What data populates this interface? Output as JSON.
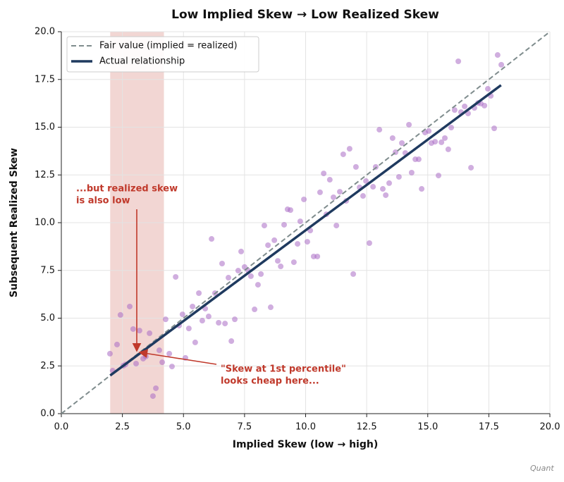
{
  "chart_data": {
    "type": "scatter",
    "title": "Low Implied Skew → Low Realized Skew",
    "x_label": "Implied Skew (low → high)",
    "y_label": "Subsequent Realized Skew",
    "xlim": [
      0,
      20
    ],
    "ylim": [
      0,
      20
    ],
    "xticks": [
      {
        "value": 0,
        "label": "0.0"
      },
      2.5,
      {
        "value": 5,
        "label": "5.0"
      },
      7.5,
      {
        "value": 10,
        "label": "10.0"
      },
      12.5,
      {
        "value": 15,
        "label": "15.0"
      },
      17.5,
      {
        "value": 20,
        "label": "20.0"
      }
    ],
    "yticks": [
      {
        "value": 0,
        "label": "0.0"
      },
      2.5,
      {
        "value": 5,
        "label": "5.0"
      },
      7.5,
      {
        "value": 10,
        "label": "10.0"
      },
      12.5,
      {
        "value": 15,
        "label": "15.0"
      },
      17.5,
      {
        "value": 20,
        "label": "20.0"
      }
    ],
    "grid": true,
    "legend": "upper left",
    "shaded_x": [
      2,
      4.2
    ],
    "shade_color": "#e8b4ae",
    "points": {
      "color": "#a96cc4",
      "x": [
        1.99,
        2.1,
        2.28,
        2.42,
        2.54,
        2.63,
        2.8,
        2.94,
        3.06,
        3.2,
        3.35,
        3.46,
        3.61,
        3.75,
        3.87,
        4.01,
        4.13,
        4.27,
        4.42,
        4.53,
        4.68,
        4.82,
        4.96,
        5.08,
        5.22,
        5.37,
        5.48,
        5.63,
        5.77,
        5.89,
        6.03,
        6.15,
        6.29,
        6.44,
        6.58,
        6.7,
        6.84,
        6.96,
        7.1,
        7.24,
        7.36,
        7.5,
        7.65,
        7.76,
        7.91,
        8.05,
        8.17,
        8.31,
        8.46,
        8.57,
        8.72,
        8.86,
        8.98,
        9.12,
        9.26,
        9.38,
        9.52,
        9.67,
        9.78,
        9.93,
        10.07,
        10.19,
        10.33,
        10.48,
        10.59,
        10.74,
        10.85,
        10.99,
        11.14,
        11.26,
        11.4,
        11.54,
        11.66,
        11.8,
        11.95,
        12.06,
        12.21,
        12.35,
        12.47,
        12.61,
        12.76,
        12.87,
        13.02,
        13.16,
        13.28,
        13.42,
        13.56,
        13.68,
        13.82,
        13.94,
        14.08,
        14.23,
        14.34,
        14.49,
        14.63,
        14.75,
        14.89,
        15.04,
        15.15,
        15.3,
        15.44,
        15.56,
        15.7,
        15.84,
        15.96,
        16.1,
        16.25,
        16.36,
        16.51,
        16.65,
        16.77,
        16.91,
        17.06,
        17.17,
        17.32,
        17.46,
        17.58,
        17.72,
        17.86,
        18.01
      ],
      "y": [
        3.14,
        2.25,
        3.62,
        5.17,
        2.51,
        2.58,
        5.61,
        4.43,
        2.62,
        4.35,
        2.88,
        2.99,
        4.21,
        0.92,
        1.33,
        3.32,
        2.69,
        4.94,
        3.14,
        2.47,
        7.16,
        4.61,
        5.2,
        2.92,
        4.46,
        5.61,
        3.73,
        6.31,
        4.87,
        5.5,
        5.09,
        9.15,
        6.31,
        4.76,
        7.86,
        4.72,
        7.12,
        3.8,
        4.94,
        7.49,
        8.49,
        7.68,
        7.49,
        7.2,
        5.46,
        6.75,
        7.31,
        9.85,
        8.82,
        5.57,
        9.08,
        8.0,
        7.71,
        9.89,
        10.7,
        10.66,
        7.93,
        8.89,
        10.07,
        11.22,
        9.0,
        9.59,
        8.23,
        8.23,
        11.59,
        12.58,
        10.44,
        12.25,
        11.33,
        9.85,
        11.62,
        13.58,
        11.14,
        13.87,
        7.31,
        12.92,
        11.85,
        11.4,
        12.18,
        8.93,
        11.88,
        12.92,
        14.87,
        11.77,
        11.44,
        12.07,
        14.43,
        13.69,
        12.4,
        14.17,
        13.65,
        15.13,
        12.62,
        13.32,
        13.32,
        11.77,
        14.72,
        14.8,
        14.17,
        14.24,
        12.47,
        14.21,
        14.43,
        13.84,
        14.98,
        15.9,
        18.45,
        15.79,
        16.09,
        15.72,
        12.88,
        16.01,
        16.27,
        16.24,
        16.13,
        17.01,
        16.64,
        14.94,
        18.78,
        18.27
      ]
    },
    "lines": [
      {
        "name": "Fair value (implied = realized)",
        "color": "#7f8c8d",
        "dashed": true,
        "x": [
          0,
          20
        ],
        "y": [
          0,
          20
        ]
      },
      {
        "name": "Actual relationship",
        "color": "#1f3a5f",
        "dashed": false,
        "x": [
          2,
          18
        ],
        "y": [
          2.0,
          17.2
        ]
      }
    ],
    "annotations": [
      {
        "lines": [
          "...but realized skew",
          "is also low"
        ],
        "color": "#c0392b"
      },
      {
        "lines": [
          "\"Skew at 1st percentile\"",
          "looks cheap here..."
        ],
        "color": "#c0392b"
      }
    ],
    "watermark": "Quant"
  }
}
